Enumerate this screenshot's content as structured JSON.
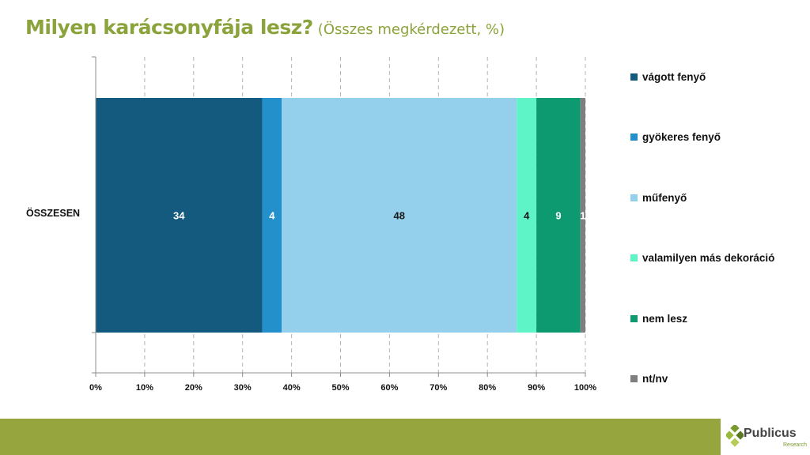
{
  "title": {
    "main": "Milyen karácsonyfája lesz?",
    "subtitle": "(Összes megkérdezett, %)",
    "color": "#8aa33a"
  },
  "chart_data": {
    "type": "bar",
    "orientation": "horizontal",
    "stacked": "100%",
    "categories": [
      "ÖSSZESEN"
    ],
    "series": [
      {
        "name": "vágott fenyő",
        "values": [
          34
        ],
        "color": "#135a7e",
        "label_color": "#ffffff"
      },
      {
        "name": "gyökeres fenyő",
        "values": [
          4
        ],
        "color": "#2390cc",
        "label_color": "#ffffff"
      },
      {
        "name": "műfenyő",
        "values": [
          48
        ],
        "color": "#94d0ec",
        "label_color": "#1a1a1a"
      },
      {
        "name": "valamilyen más dekoráció",
        "values": [
          4
        ],
        "color": "#5ef4c8",
        "label_color": "#1a1a1a"
      },
      {
        "name": "nem lesz",
        "values": [
          9
        ],
        "color": "#0e9a70",
        "label_color": "#ffffff"
      },
      {
        "name": "nt/nv",
        "values": [
          1
        ],
        "color": "#7f7f7f",
        "label_color": "#ffffff"
      }
    ],
    "xlim": [
      0,
      100
    ],
    "x_ticks": [
      "0%",
      "10%",
      "20%",
      "30%",
      "40%",
      "50%",
      "60%",
      "70%",
      "80%",
      "90%",
      "100%"
    ],
    "grid": "vertical dashed",
    "legend_placement": "right"
  },
  "footer": {
    "band_color": "#97a53f",
    "logo_text": "Publicus",
    "logo_subtext": "Research",
    "logo_colors": [
      "#7a9a2e",
      "#9ab83c",
      "#5a7a22",
      "#b5cc5a"
    ]
  }
}
